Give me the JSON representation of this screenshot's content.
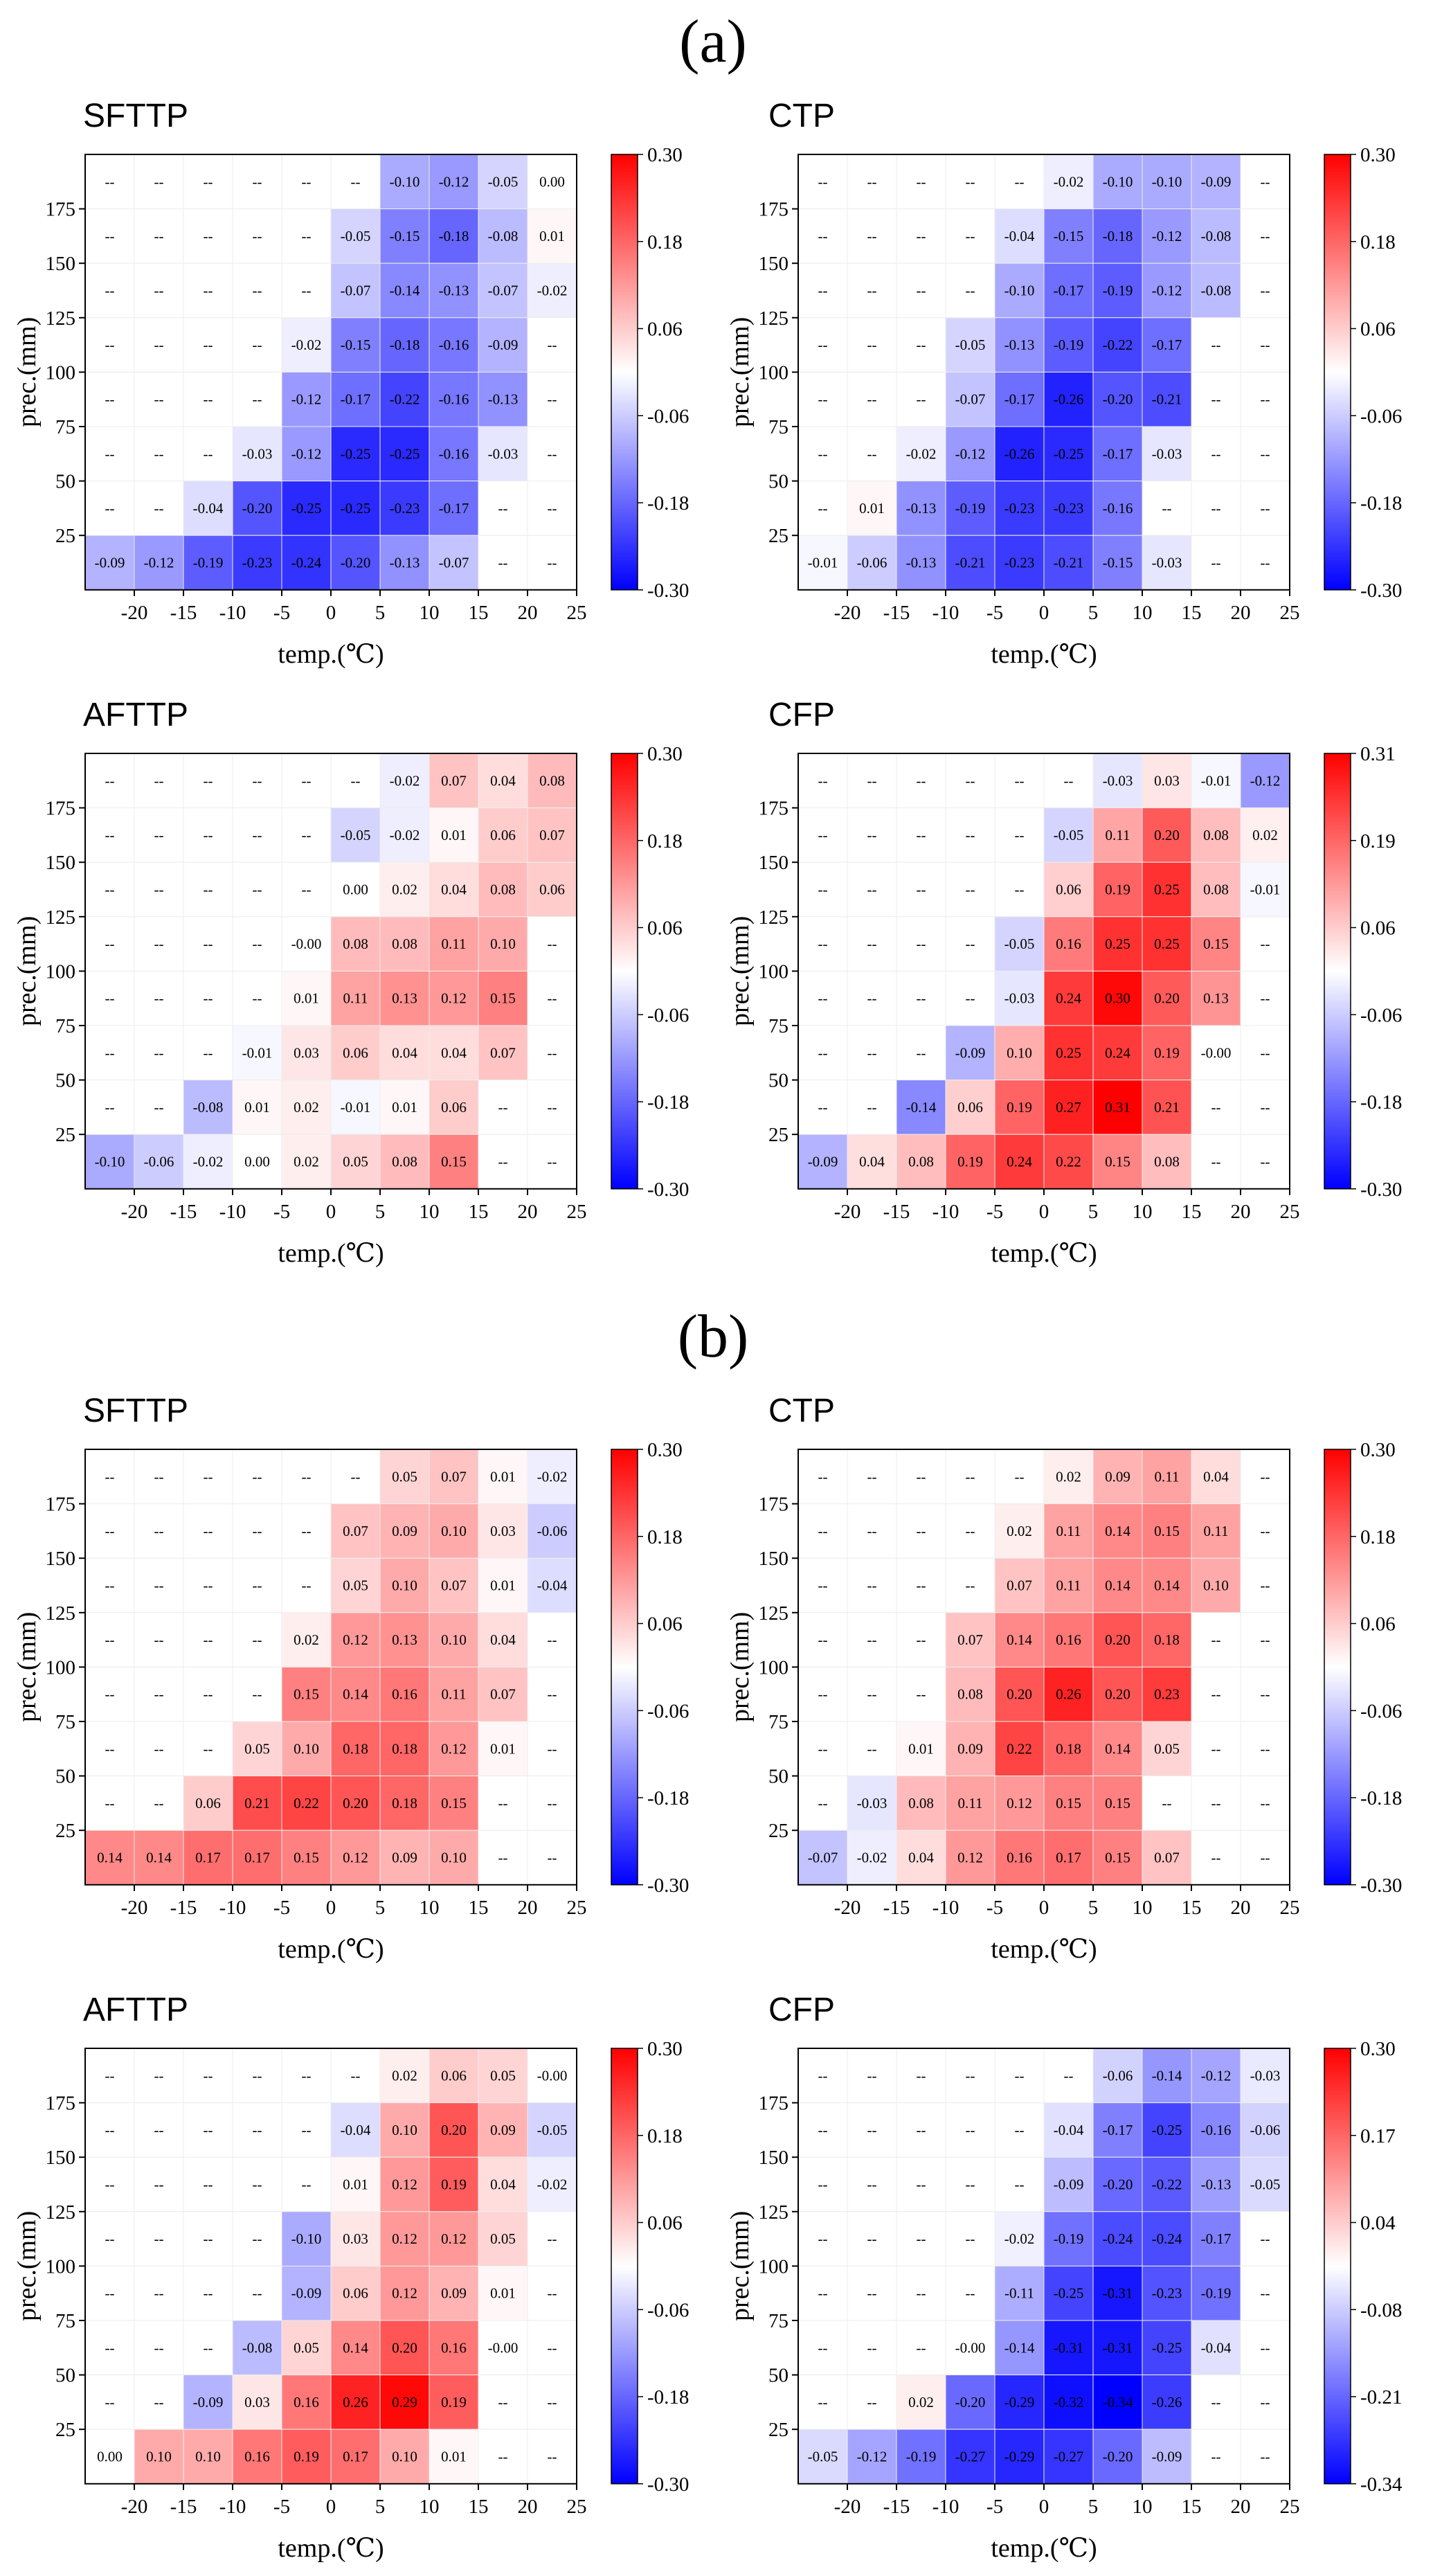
{
  "labels": {
    "a": "(a)",
    "b": "(b)"
  },
  "chart_data": [
    {
      "type": "heatmap",
      "group": "(a)",
      "title": "SFTTP",
      "xlabel": "temp.(℃)",
      "ylabel": "prec.(mm)",
      "xticks": [
        "-20",
        "-15",
        "-10",
        "-5",
        "0",
        "5",
        "10",
        "15",
        "20",
        "25"
      ],
      "yticks": [
        "25",
        "50",
        "75",
        "100",
        "125",
        "150",
        "175"
      ],
      "colorbar": {
        "min": -0.3,
        "max": 0.3,
        "ticks": [
          "0.30",
          "0.18",
          "0.06",
          "-0.06",
          "-0.18",
          "-0.30"
        ]
      },
      "rows": [
        [
          "--",
          "--",
          "--",
          "--",
          "--",
          "--",
          "-0.10",
          "-0.12",
          "-0.05",
          "0.00"
        ],
        [
          "--",
          "--",
          "--",
          "--",
          "--",
          "-0.05",
          "-0.15",
          "-0.18",
          "-0.08",
          "0.01"
        ],
        [
          "--",
          "--",
          "--",
          "--",
          "--",
          "-0.07",
          "-0.14",
          "-0.13",
          "-0.07",
          "-0.02"
        ],
        [
          "--",
          "--",
          "--",
          "--",
          "-0.02",
          "-0.15",
          "-0.18",
          "-0.16",
          "-0.09",
          "--"
        ],
        [
          "--",
          "--",
          "--",
          "--",
          "-0.12",
          "-0.17",
          "-0.22",
          "-0.16",
          "-0.13",
          "--"
        ],
        [
          "--",
          "--",
          "--",
          "-0.03",
          "-0.12",
          "-0.25",
          "-0.25",
          "-0.16",
          "-0.03",
          "--"
        ],
        [
          "--",
          "--",
          "-0.04",
          "-0.20",
          "-0.25",
          "-0.25",
          "-0.23",
          "-0.17",
          "--",
          "--"
        ],
        [
          "-0.09",
          "-0.12",
          "-0.19",
          "-0.23",
          "-0.24",
          "-0.20",
          "-0.13",
          "-0.07",
          "--",
          "--"
        ]
      ]
    },
    {
      "type": "heatmap",
      "group": "(a)",
      "title": "CTP",
      "xlabel": "temp.(℃)",
      "ylabel": "prec.(mm)",
      "xticks": [
        "-20",
        "-15",
        "-10",
        "-5",
        "0",
        "5",
        "10",
        "15",
        "20",
        "25"
      ],
      "yticks": [
        "25",
        "50",
        "75",
        "100",
        "125",
        "150",
        "175"
      ],
      "colorbar": {
        "min": -0.3,
        "max": 0.3,
        "ticks": [
          "0.30",
          "0.18",
          "0.06",
          "-0.06",
          "-0.18",
          "-0.30"
        ]
      },
      "rows": [
        [
          "--",
          "--",
          "--",
          "--",
          "--",
          "-0.02",
          "-0.10",
          "-0.10",
          "-0.09",
          "--"
        ],
        [
          "--",
          "--",
          "--",
          "--",
          "-0.04",
          "-0.15",
          "-0.18",
          "-0.12",
          "-0.08",
          "--"
        ],
        [
          "--",
          "--",
          "--",
          "--",
          "-0.10",
          "-0.17",
          "-0.19",
          "-0.12",
          "-0.08",
          "--"
        ],
        [
          "--",
          "--",
          "--",
          "-0.05",
          "-0.13",
          "-0.19",
          "-0.22",
          "-0.17",
          "--",
          "--"
        ],
        [
          "--",
          "--",
          "--",
          "-0.07",
          "-0.17",
          "-0.26",
          "-0.20",
          "-0.21",
          "--",
          "--"
        ],
        [
          "--",
          "--",
          "-0.02",
          "-0.12",
          "-0.26",
          "-0.25",
          "-0.17",
          "-0.03",
          "--",
          "--"
        ],
        [
          "--",
          "0.01",
          "-0.13",
          "-0.19",
          "-0.23",
          "-0.23",
          "-0.16",
          "--",
          "--",
          "--"
        ],
        [
          "-0.01",
          "-0.06",
          "-0.13",
          "-0.21",
          "-0.23",
          "-0.21",
          "-0.15",
          "-0.03",
          "--",
          "--"
        ]
      ]
    },
    {
      "type": "heatmap",
      "group": "(a)",
      "title": "AFTTP",
      "xlabel": "temp.(℃)",
      "ylabel": "prec.(mm)",
      "xticks": [
        "-20",
        "-15",
        "-10",
        "-5",
        "0",
        "5",
        "10",
        "15",
        "20",
        "25"
      ],
      "yticks": [
        "25",
        "50",
        "75",
        "100",
        "125",
        "150",
        "175"
      ],
      "colorbar": {
        "min": -0.3,
        "max": 0.3,
        "ticks": [
          "0.30",
          "0.18",
          "0.06",
          "-0.06",
          "-0.18",
          "-0.30"
        ]
      },
      "rows": [
        [
          "--",
          "--",
          "--",
          "--",
          "--",
          "--",
          "-0.02",
          "0.07",
          "0.04",
          "0.08"
        ],
        [
          "--",
          "--",
          "--",
          "--",
          "--",
          "-0.05",
          "-0.02",
          "0.01",
          "0.06",
          "0.07"
        ],
        [
          "--",
          "--",
          "--",
          "--",
          "--",
          "0.00",
          "0.02",
          "0.04",
          "0.08",
          "0.06"
        ],
        [
          "--",
          "--",
          "--",
          "--",
          "-0.00",
          "0.08",
          "0.08",
          "0.11",
          "0.10",
          "--"
        ],
        [
          "--",
          "--",
          "--",
          "--",
          "0.01",
          "0.11",
          "0.13",
          "0.12",
          "0.15",
          "--"
        ],
        [
          "--",
          "--",
          "--",
          "-0.01",
          "0.03",
          "0.06",
          "0.04",
          "0.04",
          "0.07",
          "--"
        ],
        [
          "--",
          "--",
          "-0.08",
          "0.01",
          "0.02",
          "-0.01",
          "0.01",
          "0.06",
          "--",
          "--"
        ],
        [
          "-0.10",
          "-0.06",
          "-0.02",
          "0.00",
          "0.02",
          "0.05",
          "0.08",
          "0.15",
          "--",
          "--"
        ]
      ]
    },
    {
      "type": "heatmap",
      "group": "(a)",
      "title": "CFP",
      "xlabel": "temp.(℃)",
      "ylabel": "prec.(mm)",
      "xticks": [
        "-20",
        "-15",
        "-10",
        "-5",
        "0",
        "5",
        "10",
        "15",
        "20",
        "25"
      ],
      "yticks": [
        "25",
        "50",
        "75",
        "100",
        "125",
        "150",
        "175"
      ],
      "colorbar": {
        "min": -0.3,
        "max": 0.31,
        "ticks": [
          "0.31",
          "0.19",
          "0.06",
          "-0.06",
          "-0.18",
          "-0.30"
        ]
      },
      "rows": [
        [
          "--",
          "--",
          "--",
          "--",
          "--",
          "--",
          "-0.03",
          "0.03",
          "-0.01",
          "-0.12"
        ],
        [
          "--",
          "--",
          "--",
          "--",
          "--",
          "-0.05",
          "0.11",
          "0.20",
          "0.08",
          "0.02"
        ],
        [
          "--",
          "--",
          "--",
          "--",
          "--",
          "0.06",
          "0.19",
          "0.25",
          "0.08",
          "-0.01"
        ],
        [
          "--",
          "--",
          "--",
          "--",
          "-0.05",
          "0.16",
          "0.25",
          "0.25",
          "0.15",
          "--"
        ],
        [
          "--",
          "--",
          "--",
          "--",
          "-0.03",
          "0.24",
          "0.30",
          "0.20",
          "0.13",
          "--"
        ],
        [
          "--",
          "--",
          "--",
          "-0.09",
          "0.10",
          "0.25",
          "0.24",
          "0.19",
          "-0.00",
          "--"
        ],
        [
          "--",
          "--",
          "-0.14",
          "0.06",
          "0.19",
          "0.27",
          "0.31",
          "0.21",
          "--",
          "--"
        ],
        [
          "-0.09",
          "0.04",
          "0.08",
          "0.19",
          "0.24",
          "0.22",
          "0.15",
          "0.08",
          "--",
          "--"
        ]
      ]
    },
    {
      "type": "heatmap",
      "group": "(b)",
      "title": "SFTTP",
      "xlabel": "temp.(℃)",
      "ylabel": "prec.(mm)",
      "xticks": [
        "-20",
        "-15",
        "-10",
        "-5",
        "0",
        "5",
        "10",
        "15",
        "20",
        "25"
      ],
      "yticks": [
        "25",
        "50",
        "75",
        "100",
        "125",
        "150",
        "175"
      ],
      "colorbar": {
        "min": -0.3,
        "max": 0.3,
        "ticks": [
          "0.30",
          "0.18",
          "0.06",
          "-0.06",
          "-0.18",
          "-0.30"
        ]
      },
      "rows": [
        [
          "--",
          "--",
          "--",
          "--",
          "--",
          "--",
          "0.05",
          "0.07",
          "0.01",
          "-0.02"
        ],
        [
          "--",
          "--",
          "--",
          "--",
          "--",
          "0.07",
          "0.09",
          "0.10",
          "0.03",
          "-0.06"
        ],
        [
          "--",
          "--",
          "--",
          "--",
          "--",
          "0.05",
          "0.10",
          "0.07",
          "0.01",
          "-0.04"
        ],
        [
          "--",
          "--",
          "--",
          "--",
          "0.02",
          "0.12",
          "0.13",
          "0.10",
          "0.04",
          "--"
        ],
        [
          "--",
          "--",
          "--",
          "--",
          "0.15",
          "0.14",
          "0.16",
          "0.11",
          "0.07",
          "--"
        ],
        [
          "--",
          "--",
          "--",
          "0.05",
          "0.10",
          "0.18",
          "0.18",
          "0.12",
          "0.01",
          "--"
        ],
        [
          "--",
          "--",
          "0.06",
          "0.21",
          "0.22",
          "0.20",
          "0.18",
          "0.15",
          "--",
          "--"
        ],
        [
          "0.14",
          "0.14",
          "0.17",
          "0.17",
          "0.15",
          "0.12",
          "0.09",
          "0.10",
          "--",
          "--"
        ]
      ]
    },
    {
      "type": "heatmap",
      "group": "(b)",
      "title": "CTP",
      "xlabel": "temp.(℃)",
      "ylabel": "prec.(mm)",
      "xticks": [
        "-20",
        "-15",
        "-10",
        "-5",
        "0",
        "5",
        "10",
        "15",
        "20",
        "25"
      ],
      "yticks": [
        "25",
        "50",
        "75",
        "100",
        "125",
        "150",
        "175"
      ],
      "colorbar": {
        "min": -0.3,
        "max": 0.3,
        "ticks": [
          "0.30",
          "0.18",
          "0.06",
          "-0.06",
          "-0.18",
          "-0.30"
        ]
      },
      "rows": [
        [
          "--",
          "--",
          "--",
          "--",
          "--",
          "0.02",
          "0.09",
          "0.11",
          "0.04",
          "--"
        ],
        [
          "--",
          "--",
          "--",
          "--",
          "0.02",
          "0.11",
          "0.14",
          "0.15",
          "0.11",
          "--"
        ],
        [
          "--",
          "--",
          "--",
          "--",
          "0.07",
          "0.11",
          "0.14",
          "0.14",
          "0.10",
          "--"
        ],
        [
          "--",
          "--",
          "--",
          "0.07",
          "0.14",
          "0.16",
          "0.20",
          "0.18",
          "--",
          "--"
        ],
        [
          "--",
          "--",
          "--",
          "0.08",
          "0.20",
          "0.26",
          "0.20",
          "0.23",
          "--",
          "--"
        ],
        [
          "--",
          "--",
          "0.01",
          "0.09",
          "0.22",
          "0.18",
          "0.14",
          "0.05",
          "--",
          "--"
        ],
        [
          "--",
          "-0.03",
          "0.08",
          "0.11",
          "0.12",
          "0.15",
          "0.15",
          "--",
          "--",
          "--"
        ],
        [
          "-0.07",
          "-0.02",
          "0.04",
          "0.12",
          "0.16",
          "0.17",
          "0.15",
          "0.07",
          "--",
          "--"
        ]
      ]
    },
    {
      "type": "heatmap",
      "group": "(b)",
      "title": "AFTTP",
      "xlabel": "temp.(℃)",
      "ylabel": "prec.(mm)",
      "xticks": [
        "-20",
        "-15",
        "-10",
        "-5",
        "0",
        "5",
        "10",
        "15",
        "20",
        "25"
      ],
      "yticks": [
        "25",
        "50",
        "75",
        "100",
        "125",
        "150",
        "175"
      ],
      "colorbar": {
        "min": -0.3,
        "max": 0.3,
        "ticks": [
          "0.30",
          "0.18",
          "0.06",
          "-0.06",
          "-0.18",
          "-0.30"
        ]
      },
      "rows": [
        [
          "--",
          "--",
          "--",
          "--",
          "--",
          "--",
          "0.02",
          "0.06",
          "0.05",
          "-0.00"
        ],
        [
          "--",
          "--",
          "--",
          "--",
          "--",
          "-0.04",
          "0.10",
          "0.20",
          "0.09",
          "-0.05"
        ],
        [
          "--",
          "--",
          "--",
          "--",
          "--",
          "0.01",
          "0.12",
          "0.19",
          "0.04",
          "-0.02"
        ],
        [
          "--",
          "--",
          "--",
          "--",
          "-0.10",
          "0.03",
          "0.12",
          "0.12",
          "0.05",
          "--"
        ],
        [
          "--",
          "--",
          "--",
          "--",
          "-0.09",
          "0.06",
          "0.12",
          "0.09",
          "0.01",
          "--"
        ],
        [
          "--",
          "--",
          "--",
          "-0.08",
          "0.05",
          "0.14",
          "0.20",
          "0.16",
          "-0.00",
          "--"
        ],
        [
          "--",
          "--",
          "-0.09",
          "0.03",
          "0.16",
          "0.26",
          "0.29",
          "0.19",
          "--",
          "--"
        ],
        [
          "0.00",
          "0.10",
          "0.10",
          "0.16",
          "0.19",
          "0.17",
          "0.10",
          "0.01",
          "--",
          "--"
        ]
      ]
    },
    {
      "type": "heatmap",
      "group": "(b)",
      "title": "CFP",
      "xlabel": "temp.(℃)",
      "ylabel": "prec.(mm)",
      "xticks": [
        "-20",
        "-15",
        "-10",
        "-5",
        "0",
        "5",
        "10",
        "15",
        "20",
        "25"
      ],
      "yticks": [
        "25",
        "50",
        "75",
        "100",
        "125",
        "150",
        "175"
      ],
      "colorbar": {
        "min": -0.34,
        "max": 0.3,
        "ticks": [
          "0.30",
          "0.17",
          "0.04",
          "-0.08",
          "-0.21",
          "-0.34"
        ]
      },
      "rows": [
        [
          "--",
          "--",
          "--",
          "--",
          "--",
          "--",
          "-0.06",
          "-0.14",
          "-0.12",
          "-0.03"
        ],
        [
          "--",
          "--",
          "--",
          "--",
          "--",
          "-0.04",
          "-0.17",
          "-0.25",
          "-0.16",
          "-0.06"
        ],
        [
          "--",
          "--",
          "--",
          "--",
          "--",
          "-0.09",
          "-0.20",
          "-0.22",
          "-0.13",
          "-0.05"
        ],
        [
          "--",
          "--",
          "--",
          "--",
          "-0.02",
          "-0.19",
          "-0.24",
          "-0.24",
          "-0.17",
          "--"
        ],
        [
          "--",
          "--",
          "--",
          "--",
          "-0.11",
          "-0.25",
          "-0.31",
          "-0.23",
          "-0.19",
          "--"
        ],
        [
          "--",
          "--",
          "--",
          "-0.00",
          "-0.14",
          "-0.31",
          "-0.31",
          "-0.25",
          "-0.04",
          "--"
        ],
        [
          "--",
          "--",
          "0.02",
          "-0.20",
          "-0.29",
          "-0.32",
          "-0.34",
          "-0.26",
          "--",
          "--"
        ],
        [
          "-0.05",
          "-0.12",
          "-0.19",
          "-0.27",
          "-0.29",
          "-0.27",
          "-0.20",
          "-0.09",
          "--",
          "--"
        ]
      ]
    }
  ]
}
